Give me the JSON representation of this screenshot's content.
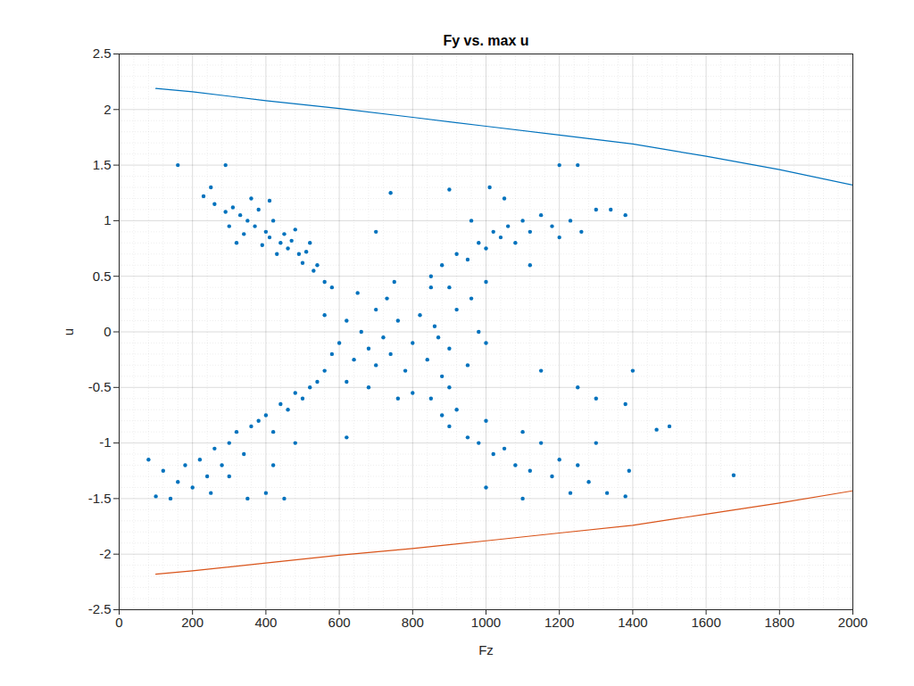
{
  "chart_data": {
    "type": "scatter",
    "title": "Fy vs. max u",
    "x_label": "Fz",
    "y_label": "u",
    "xlim": [
      0,
      2000
    ],
    "ylim": [
      -2.5,
      2.5
    ],
    "xticks": [
      0,
      200,
      400,
      600,
      800,
      1000,
      1200,
      1400,
      1600,
      1800,
      2000
    ],
    "yticks": [
      -2.5,
      -2,
      -1.5,
      -1,
      -0.5,
      0,
      0.5,
      1,
      1.5,
      2,
      2.5
    ],
    "grid": true,
    "series": [
      {
        "type": "scatter",
        "color": "#0072bd",
        "marker": "circle",
        "x": [
          230,
          260,
          290,
          310,
          330,
          350,
          370,
          380,
          400,
          410,
          420,
          440,
          450,
          460,
          470,
          490,
          500,
          510,
          530,
          540,
          560,
          580,
          300,
          340,
          390,
          430,
          480,
          250,
          360,
          410,
          520,
          320,
          100,
          120,
          140,
          160,
          180,
          200,
          220,
          240,
          260,
          280,
          300,
          320,
          340,
          360,
          380,
          400,
          420,
          440,
          460,
          480,
          500,
          520,
          540,
          560,
          450,
          400,
          350,
          250,
          300,
          420,
          480,
          80,
          600,
          620,
          640,
          660,
          680,
          700,
          700,
          720,
          740,
          760,
          780,
          800,
          820,
          840,
          860,
          880,
          900,
          920,
          950,
          980,
          650,
          750,
          850,
          680,
          800,
          900,
          580,
          620,
          760,
          960,
          730,
          870,
          1000,
          560,
          850,
          880,
          900,
          920,
          950,
          980,
          1000,
          1020,
          1040,
          1060,
          1080,
          1100,
          1120,
          1150,
          1180,
          1200,
          1230,
          1260,
          1300,
          1340,
          1380,
          960,
          1010,
          1200,
          1250,
          740,
          900,
          1050,
          1120,
          1000,
          850,
          880,
          900,
          920,
          950,
          980,
          1000,
          1020,
          1050,
          1080,
          1100,
          1120,
          1150,
          1180,
          1200,
          1230,
          1250,
          1280,
          1300,
          1330,
          1380,
          1390,
          1400,
          1380,
          1465,
          1500,
          1675,
          1000,
          1100,
          1300,
          1250,
          1150,
          160,
          290,
          700,
          620
        ],
        "values": [
          1.22,
          1.15,
          1.08,
          1.12,
          1.05,
          1.0,
          0.95,
          1.1,
          0.9,
          0.85,
          1.0,
          0.8,
          0.88,
          0.75,
          0.82,
          0.7,
          0.62,
          0.72,
          0.55,
          0.6,
          0.45,
          0.4,
          0.95,
          0.88,
          0.78,
          0.7,
          0.92,
          1.3,
          1.2,
          1.18,
          0.8,
          0.8,
          -1.48,
          -1.25,
          -1.5,
          -1.35,
          -1.2,
          -1.4,
          -1.15,
          -1.3,
          -1.05,
          -1.2,
          -1.0,
          -0.9,
          -1.1,
          -0.85,
          -0.8,
          -0.75,
          -0.9,
          -0.65,
          -0.7,
          -0.55,
          -0.6,
          -0.5,
          -0.45,
          -0.35,
          -1.5,
          -1.45,
          -1.5,
          -1.45,
          -1.3,
          -1.2,
          -1.0,
          -1.15,
          -0.1,
          0.1,
          -0.25,
          0.0,
          -0.15,
          0.2,
          -0.3,
          -0.05,
          -0.2,
          0.1,
          -0.35,
          -0.1,
          0.15,
          -0.25,
          0.05,
          -0.4,
          -0.15,
          0.2,
          -0.3,
          0.0,
          0.35,
          0.45,
          0.4,
          -0.5,
          -0.55,
          -0.5,
          -0.2,
          -0.45,
          -0.6,
          0.3,
          0.3,
          -0.05,
          -0.1,
          0.15,
          0.5,
          0.6,
          0.4,
          0.7,
          0.65,
          0.8,
          0.75,
          0.9,
          0.85,
          0.95,
          0.8,
          1.0,
          0.9,
          1.05,
          0.95,
          0.85,
          1.0,
          0.9,
          1.1,
          1.1,
          1.05,
          1.0,
          1.3,
          1.5,
          1.5,
          1.25,
          1.28,
          1.2,
          0.6,
          0.45,
          -0.6,
          -0.75,
          -0.85,
          -0.7,
          -0.95,
          -1.0,
          -0.8,
          -1.1,
          -1.05,
          -1.2,
          -0.9,
          -1.25,
          -1.0,
          -1.3,
          -1.15,
          -1.45,
          -1.2,
          -1.35,
          -1.0,
          -1.45,
          -1.48,
          -1.25,
          -0.35,
          -0.65,
          -0.88,
          -0.85,
          -1.29,
          -1.4,
          -1.5,
          -0.6,
          -0.5,
          -0.35,
          1.5,
          1.5,
          0.9,
          -0.95
        ]
      },
      {
        "type": "line",
        "color": "#0072bd",
        "x": [
          100,
          200,
          400,
          600,
          800,
          1000,
          1200,
          1400,
          1600,
          1800,
          2000
        ],
        "values": [
          2.19,
          2.16,
          2.08,
          2.01,
          1.93,
          1.85,
          1.77,
          1.69,
          1.58,
          1.46,
          1.32
        ]
      },
      {
        "type": "line",
        "color": "#d95319",
        "x": [
          100,
          200,
          400,
          600,
          800,
          1000,
          1200,
          1400,
          1600,
          1800,
          2000
        ],
        "values": [
          -2.18,
          -2.15,
          -2.08,
          -2.01,
          -1.95,
          -1.88,
          -1.81,
          -1.74,
          -1.64,
          -1.54,
          -1.43
        ]
      }
    ]
  }
}
